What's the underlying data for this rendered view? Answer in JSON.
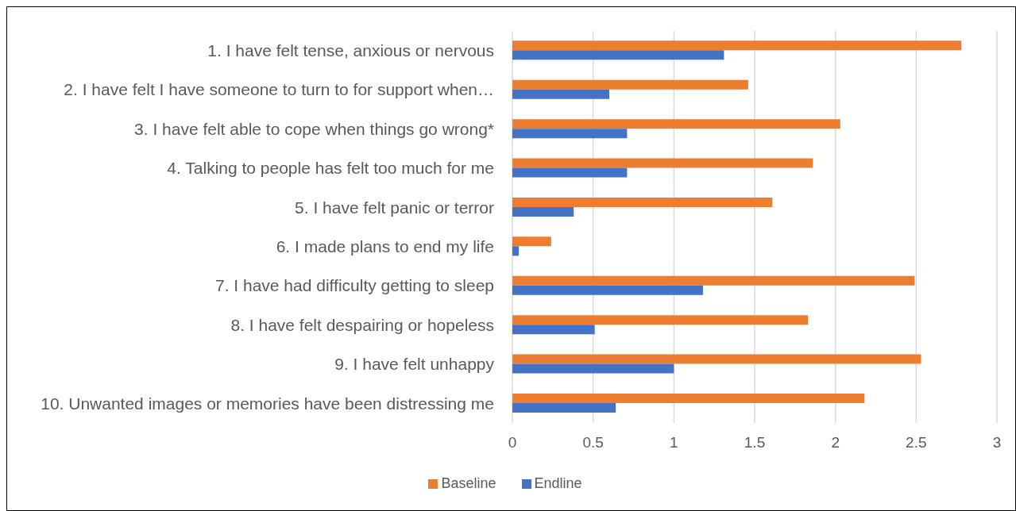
{
  "chart_data": {
    "type": "bar",
    "orientation": "horizontal",
    "categories": [
      "1. I have felt tense, anxious or nervous",
      "2. I have felt I have someone to turn to for support when…",
      "3. I have felt able to cope when things go wrong*",
      "4. Talking to people has felt too much for me",
      "5. I have felt panic or terror",
      "6. I made plans to end my life",
      "7. I have had difficulty getting to sleep",
      "8. I have felt despairing or hopeless",
      "9. I have felt unhappy",
      "10. Unwanted images or memories have been distressing me"
    ],
    "series": [
      {
        "name": "Baseline",
        "color": "#ed7d31",
        "values": [
          2.78,
          1.46,
          2.03,
          1.86,
          1.61,
          0.24,
          2.49,
          1.83,
          2.53,
          2.18
        ]
      },
      {
        "name": "Endline",
        "color": "#4472c4",
        "values": [
          1.31,
          0.6,
          0.71,
          0.71,
          0.38,
          0.04,
          1.18,
          0.51,
          1.0,
          0.64
        ]
      }
    ],
    "xlim": [
      0,
      3
    ],
    "xticks": [
      0,
      0.5,
      1,
      1.5,
      2,
      2.5,
      3
    ],
    "grid": "x",
    "legend": "bottom"
  }
}
